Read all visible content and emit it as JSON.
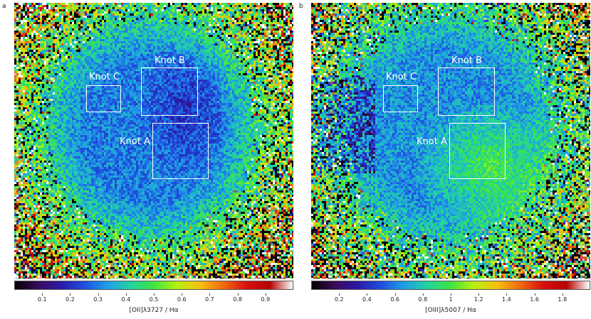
{
  "panels": [
    {
      "letter": "a",
      "knots": [
        {
          "label": "Knot C"
        },
        {
          "label": "Knot B"
        },
        {
          "label": "Knot A"
        }
      ],
      "colorbar": {
        "ticks": [
          "0.1",
          "0.2",
          "0.3",
          "0.4",
          "0.5",
          "0.6",
          "0.7",
          "0.8",
          "0.9"
        ],
        "label": "[OII]λ3727 / Hα",
        "range": [
          0,
          1.0
        ]
      }
    },
    {
      "letter": "b",
      "knots": [
        {
          "label": "Knot C"
        },
        {
          "label": "Knot B"
        },
        {
          "label": "Knot A"
        }
      ],
      "colorbar": {
        "ticks": [
          "0.2",
          "0.4",
          "0.6",
          "0.8",
          "1",
          "1.2",
          "1.4",
          "1.6",
          "1.8"
        ],
        "label": "[OIII]λ5007 / Hα",
        "range": [
          0,
          2.0
        ]
      }
    }
  ],
  "colors": {
    "knot_box": "#ffffff",
    "colormap": [
      "#000000",
      "#3a0a5a",
      "#2a1aa8",
      "#1f4fe0",
      "#1e9fe6",
      "#22d3a0",
      "#3ee640",
      "#b8f010",
      "#f5c010",
      "#f06a10",
      "#d81010",
      "#b80000",
      "#ffffff"
    ]
  }
}
